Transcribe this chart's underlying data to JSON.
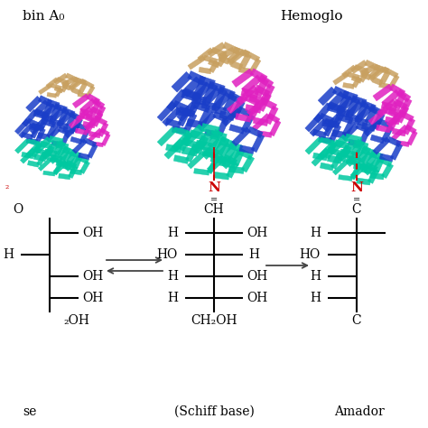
{
  "bg_color": "#ffffff",
  "title_left": "bin A₀",
  "title_right": "Hemoglo",
  "label_left": "se",
  "label_center": "(Schiff base)",
  "label_right": "Amador",
  "arrow_color": "#444444",
  "N_color": "#cc0000",
  "text_color": "#000000",
  "line_color": "#000000",
  "fig_width": 4.74,
  "fig_height": 4.74,
  "dpi": 100,
  "protein_colors": {
    "blue": "#1a3ec8",
    "tan": "#c8a060",
    "magenta": "#e020c0",
    "cyan": "#00c8a0",
    "white": "#e8e8e8"
  }
}
